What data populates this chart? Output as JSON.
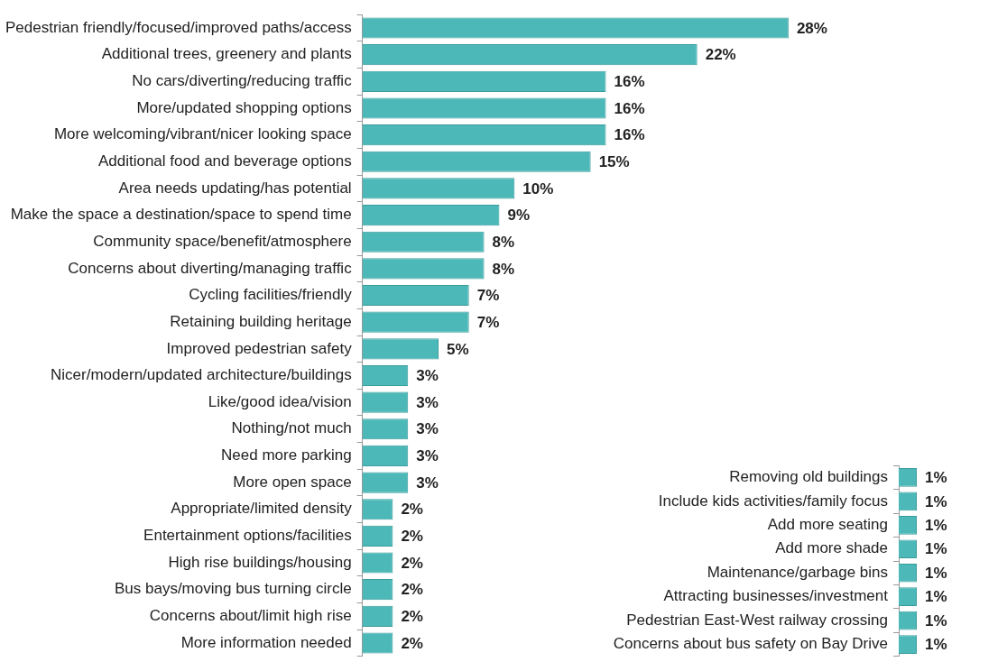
{
  "chart_data": [
    {
      "type": "bar",
      "orientation": "horizontal",
      "tick_labels": "y",
      "categories": [
        "Pedestrian friendly/focused/improved paths/access",
        "Additional trees, greenery and plants",
        "No cars/diverting/reducing traffic",
        "More/updated shopping options",
        "More welcoming/vibrant/nicer looking space",
        "Additional food and beverage options",
        "Area needs updating/has potential",
        "Make the space a destination/space to spend time",
        "Community space/benefit/atmosphere",
        "Concerns about diverting/managing traffic",
        "Cycling facilities/friendly",
        "Retaining building heritage",
        "Improved pedestrian safety",
        "Nicer/modern/updated architecture/buildings",
        "Like/good idea/vision",
        "Nothing/not much",
        "Need more parking",
        "More open space",
        "Appropriate/limited density",
        "Entertainment options/facilities",
        "High rise buildings/housing",
        "Bus bays/moving bus turning circle",
        "Concerns about/limit high rise",
        "More information needed"
      ],
      "values": [
        28,
        22,
        16,
        16,
        16,
        15,
        10,
        9,
        8,
        8,
        7,
        7,
        5,
        3,
        3,
        3,
        3,
        3,
        2,
        2,
        2,
        2,
        2,
        2
      ],
      "value_labels": [
        "28%",
        "22%",
        "16%",
        "16%",
        "16%",
        "15%",
        "10%",
        "9%",
        "8%",
        "8%",
        "7%",
        "7%",
        "5%",
        "3%",
        "3%",
        "3%",
        "3%",
        "3%",
        "2%",
        "2%",
        "2%",
        "2%",
        "2%",
        "2%"
      ],
      "color": "#4cb8b8"
    },
    {
      "type": "bar",
      "orientation": "horizontal",
      "tick_labels": "y",
      "categories": [
        "Removing old buildings",
        "Include kids activities/family focus",
        "Add more seating",
        "Add more shade",
        "Maintenance/garbage bins",
        "Attracting businesses/investment",
        "Pedestrian East-West railway crossing",
        "Concerns about bus safety on Bay Drive"
      ],
      "values": [
        1,
        1,
        1,
        1,
        1,
        1,
        1,
        1
      ],
      "value_labels": [
        "1%",
        "1%",
        "1%",
        "1%",
        "1%",
        "1%",
        "1%",
        "1%"
      ],
      "color": "#4cb8b8"
    }
  ]
}
